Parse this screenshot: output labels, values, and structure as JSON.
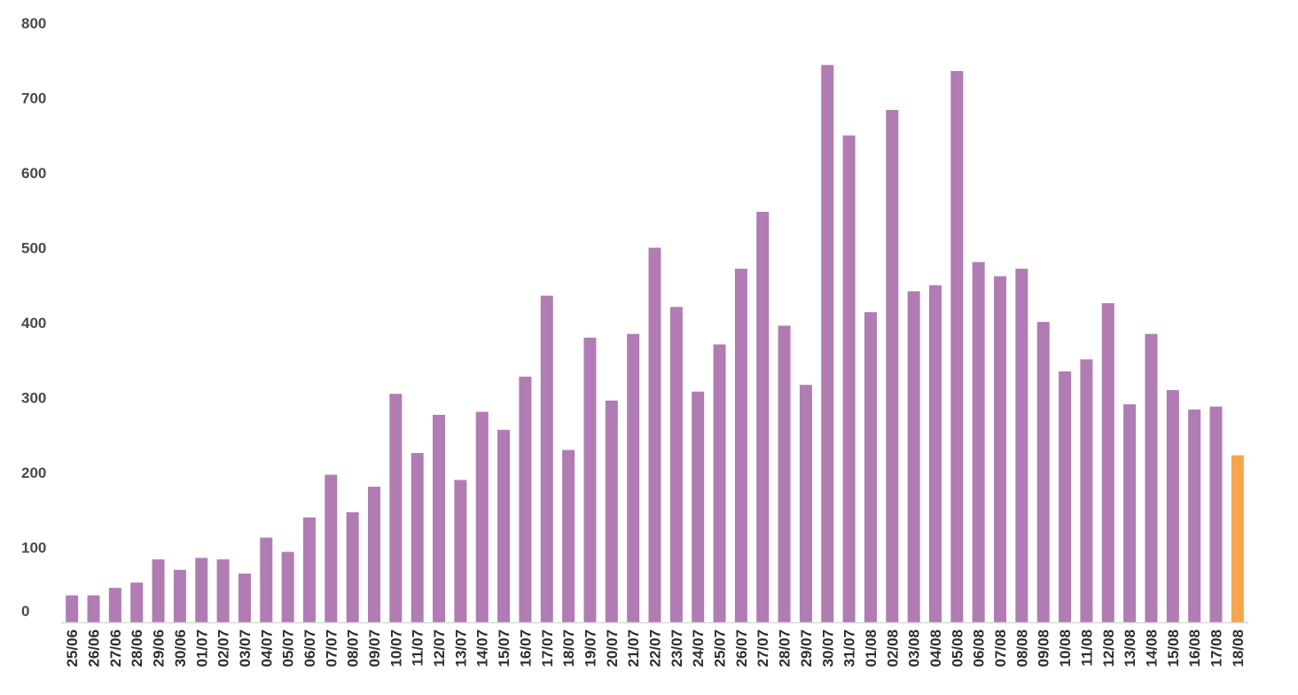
{
  "chart_data": {
    "type": "bar",
    "title": "",
    "xlabel": "",
    "ylabel": "",
    "ylim": [
      0,
      800
    ],
    "yticks": [
      0,
      100,
      200,
      300,
      400,
      500,
      600,
      700,
      800
    ],
    "grid": false,
    "legend": "none",
    "colors": {
      "bar": "#b07cb3",
      "highlight": "#f5a54a",
      "axis": "#d9d9d9"
    },
    "highlight_index": 54,
    "categories": [
      "25/06",
      "26/06",
      "27/06",
      "28/06",
      "29/06",
      "30/06",
      "01/07",
      "02/07",
      "03/07",
      "04/07",
      "05/07",
      "06/07",
      "07/07",
      "08/07",
      "09/07",
      "10/07",
      "11/07",
      "12/07",
      "13/07",
      "14/07",
      "15/07",
      "16/07",
      "17/07",
      "18/07",
      "19/07",
      "20/07",
      "21/07",
      "22/07",
      "23/07",
      "24/07",
      "25/07",
      "26/07",
      "27/07",
      "28/07",
      "29/07",
      "30/07",
      "31/07",
      "01/08",
      "02/08",
      "03/08",
      "04/08",
      "05/08",
      "06/08",
      "07/08",
      "08/08",
      "09/08",
      "10/08",
      "11/08",
      "12/08",
      "13/08",
      "14/08",
      "15/08",
      "16/08",
      "17/08",
      "18/08"
    ],
    "values": [
      36,
      36,
      46,
      53,
      84,
      70,
      86,
      84,
      65,
      113,
      94,
      140,
      197,
      147,
      181,
      305,
      226,
      277,
      190,
      281,
      257,
      328,
      436,
      230,
      380,
      296,
      385,
      500,
      421,
      308,
      371,
      472,
      548,
      396,
      317,
      744,
      650,
      414,
      684,
      442,
      450,
      736,
      481,
      462,
      472,
      401,
      335,
      351,
      426,
      291,
      385,
      310,
      284,
      288,
      223
    ]
  }
}
